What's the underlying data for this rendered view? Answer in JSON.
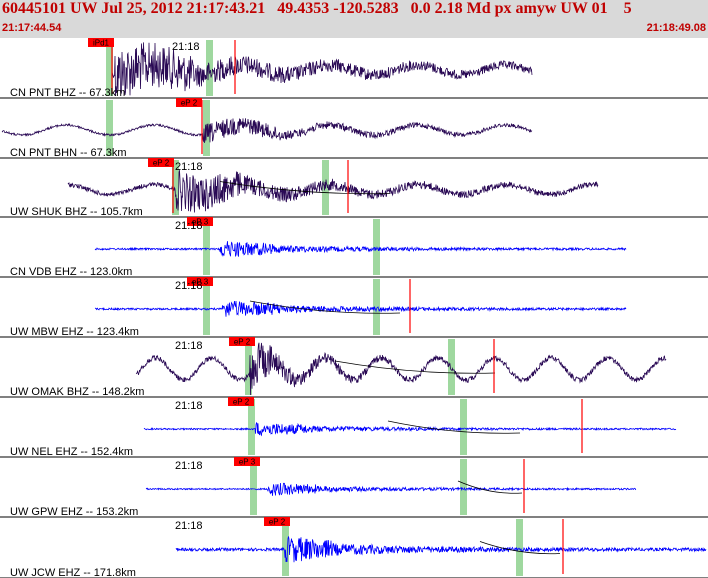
{
  "header": {
    "title": "60445101 UW Jul 25, 2012 21:17:43.21   49.4353 -120.5283   0.0 2.18 Md px amyw UW 01    5",
    "time_start": "21:17:44.54",
    "time_end": "21:18:49.08"
  },
  "colors": {
    "header_bg": "#d9d9d9",
    "header_text": "#c00000",
    "trace_bh": "#2a0a55",
    "trace_ehz": "#0000ff",
    "pick": "#ff0000",
    "window": "#9fd89f"
  },
  "panels": [
    {
      "label": "CN PNT BHZ -- 67.3km",
      "time_mark": "21:18",
      "pick_label": "iPd1",
      "color": "bh"
    },
    {
      "label": "CN PNT BHN -- 67.3km",
      "time_mark": "",
      "pick_label": "eP 2",
      "color": "bh"
    },
    {
      "label": "UW SHUK BHZ -- 105.7km",
      "time_mark": "21:18",
      "pick_label": "eP 2",
      "color": "bh"
    },
    {
      "label": "CN VDB EHZ -- 123.0km",
      "time_mark": "21:18",
      "pick_label": "eP 3",
      "color": "ehz"
    },
    {
      "label": "UW MBW EHZ -- 123.4km",
      "time_mark": "21:18",
      "pick_label": "eP 3",
      "color": "ehz"
    },
    {
      "label": "UW OMAK BHZ -- 148.2km",
      "time_mark": "21:18",
      "pick_label": "eP 2",
      "color": "bh"
    },
    {
      "label": "UW NEL EHZ -- 152.4km",
      "time_mark": "21:18",
      "pick_label": "eP 2",
      "color": "ehz"
    },
    {
      "label": "UW GPW EHZ -- 153.2km",
      "time_mark": "21:18",
      "pick_label": "eP 3",
      "color": "ehz"
    },
    {
      "label": "UW JCW EHZ -- 171.8km",
      "time_mark": "21:18",
      "pick_label": "eP 2",
      "color": "ehz"
    }
  ]
}
